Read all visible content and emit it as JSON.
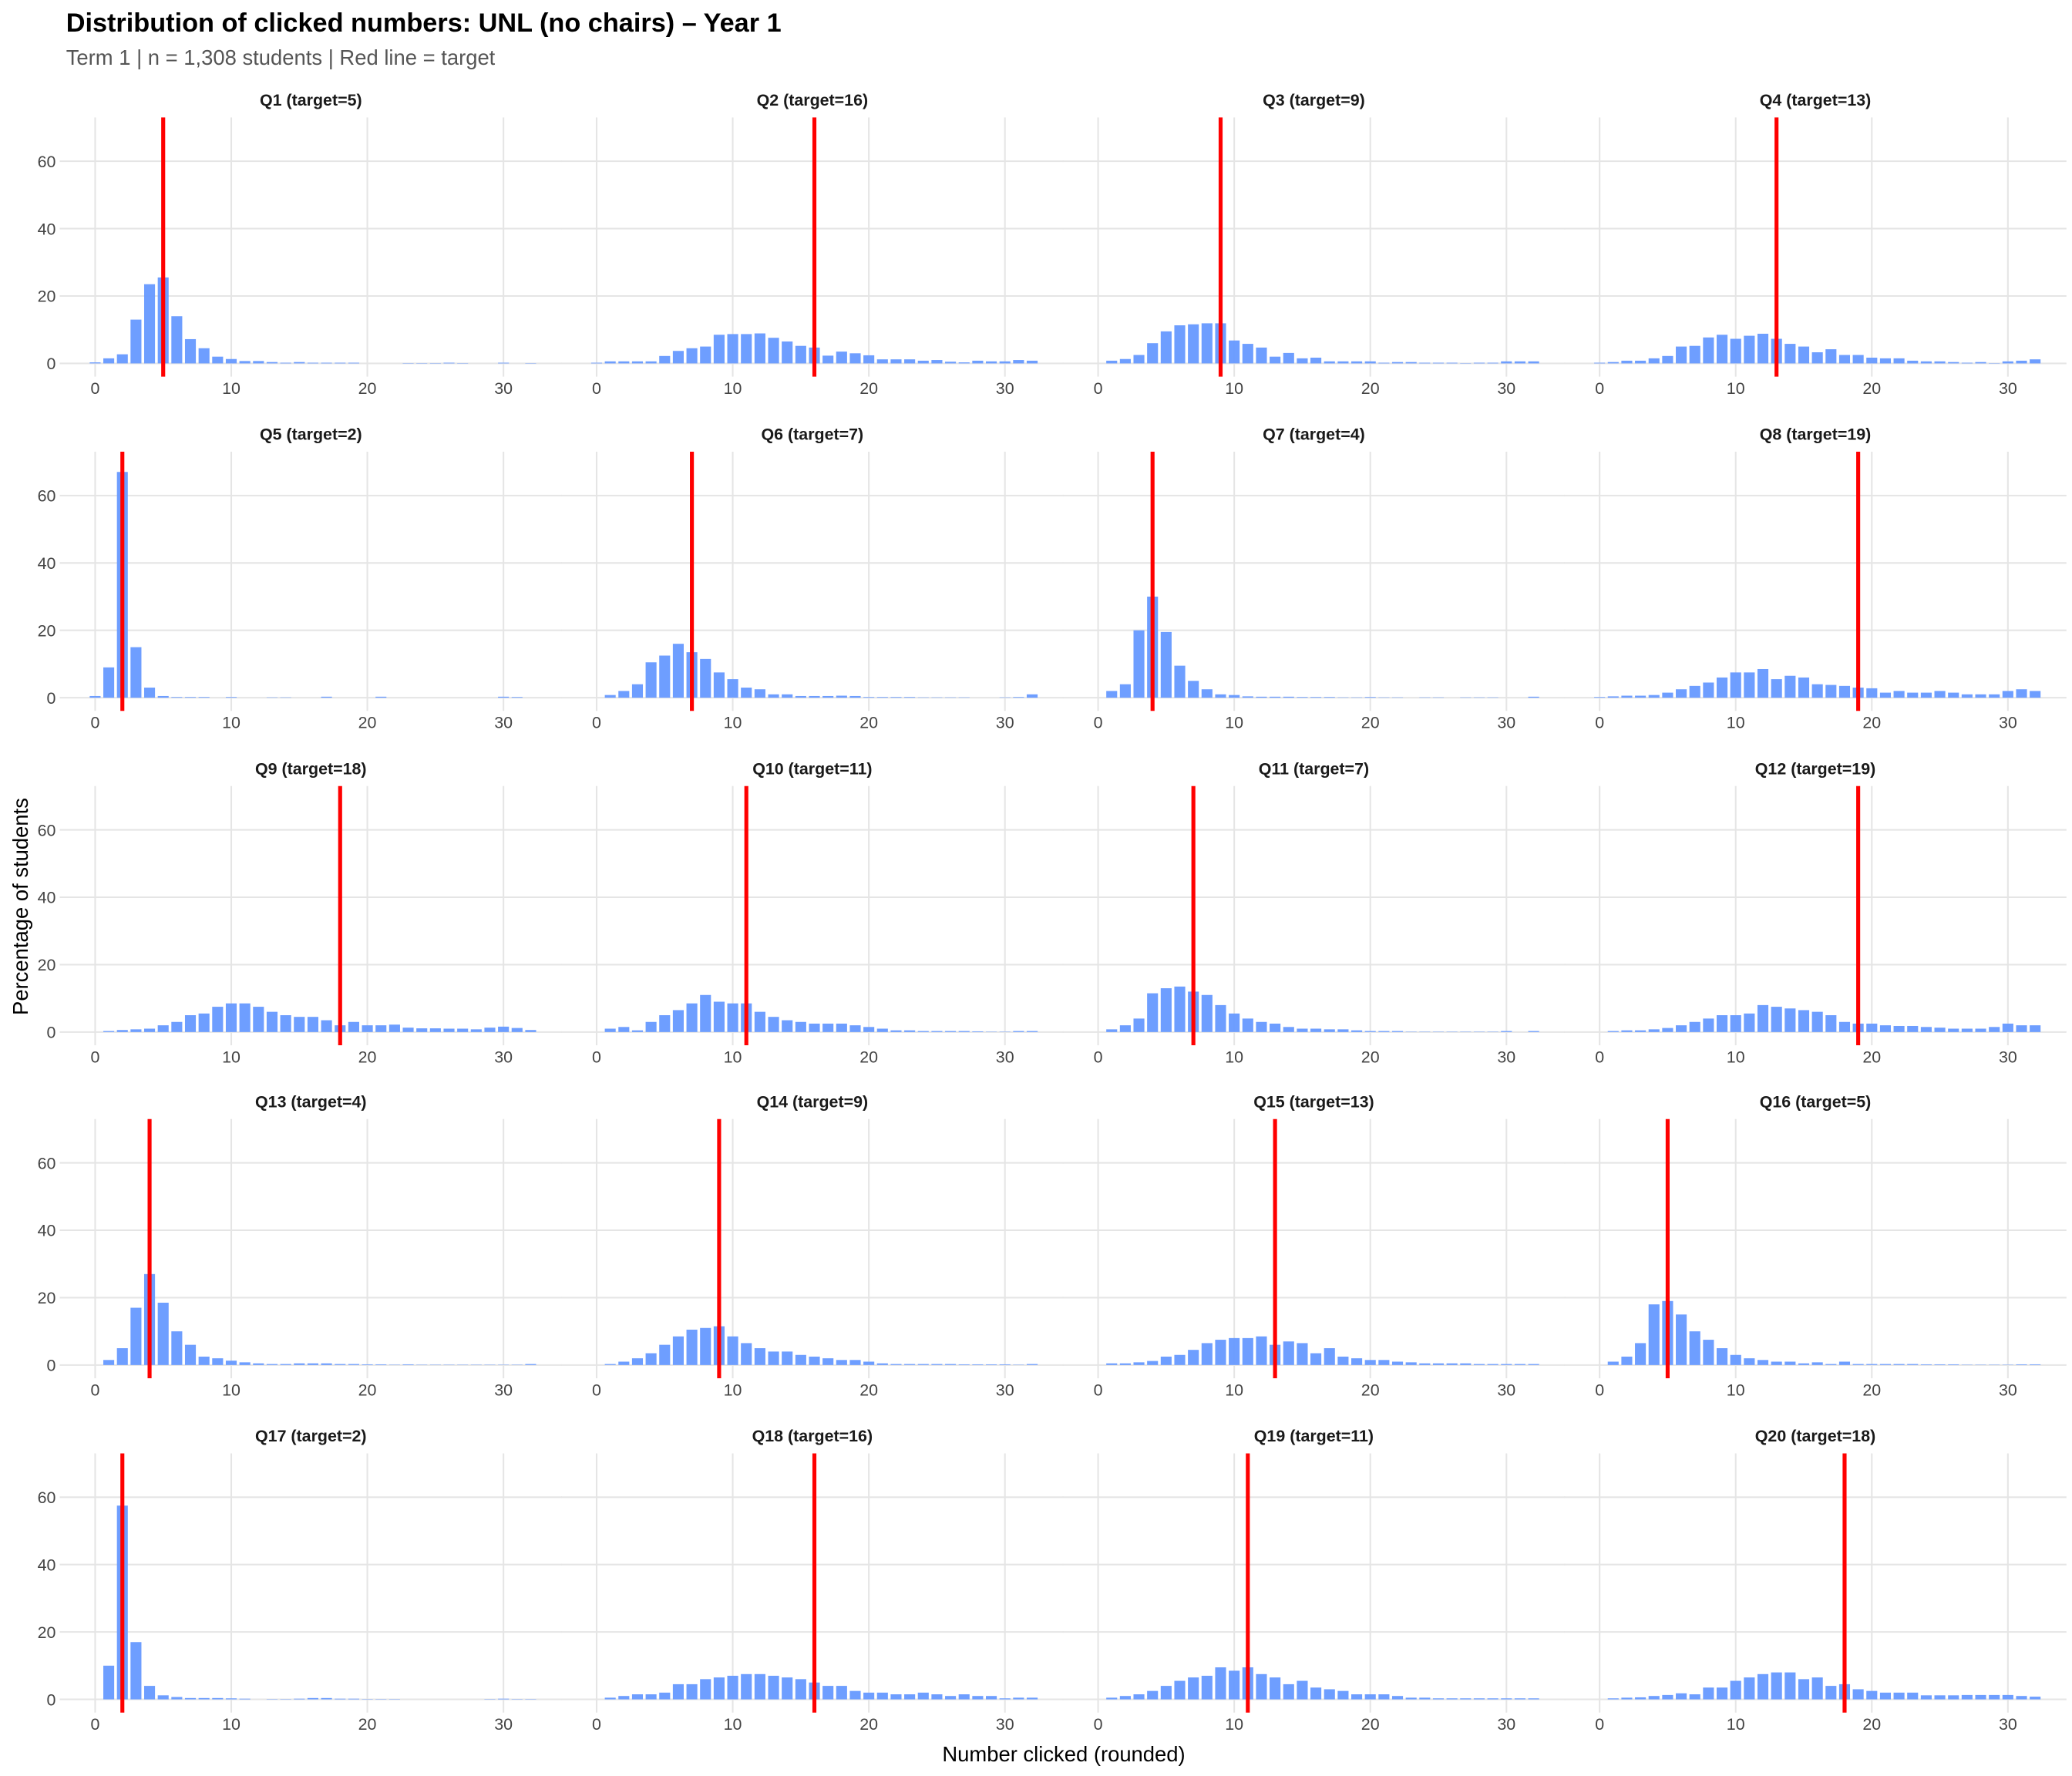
{
  "title": "Distribution of clicked numbers: UNL (no chairs) – Year 1",
  "subtitle": "Term 1 | n = 1,308 students | Red line = target",
  "colors": {
    "bar": "#6699FF",
    "target_line": "#FF0000",
    "grid": "#E5E5E5"
  },
  "chart_data": {
    "type": "bar",
    "facet_layout": "5 rows x 4 columns",
    "xlabel": "Number clicked (rounded)",
    "ylabel": "Percentage of students",
    "x": [
      0,
      1,
      2,
      3,
      4,
      5,
      6,
      7,
      8,
      9,
      10,
      11,
      12,
      13,
      14,
      15,
      16,
      17,
      18,
      19,
      20,
      21,
      22,
      23,
      24,
      25,
      26,
      27,
      28,
      29,
      30,
      31,
      32
    ],
    "xlim": [
      -2.6,
      34.3
    ],
    "ylim": [
      0,
      73
    ],
    "xticks": [
      0,
      10,
      20,
      30
    ],
    "yticks": [
      0,
      20,
      40,
      60
    ],
    "grid": true,
    "panels": [
      {
        "label": "Q1 (target=5)",
        "target": 5,
        "values": [
          0.3,
          1.5,
          2.7,
          13,
          23.5,
          25.5,
          14,
          7.2,
          4.5,
          2,
          1.3,
          0.7,
          0.7,
          0.4,
          0.2,
          0.4,
          0.2,
          0.2,
          0.2,
          0.2,
          0,
          0,
          0,
          0.1,
          0.1,
          0.1,
          0.2,
          0.1,
          0,
          0,
          0.2,
          0,
          0.1
        ]
      },
      {
        "label": "Q2 (target=16)",
        "target": 16,
        "values": [
          0.2,
          0.6,
          0.6,
          0.6,
          0.6,
          2.2,
          3.7,
          4.5,
          5,
          8.5,
          8.7,
          8.7,
          8.9,
          7.6,
          6.5,
          5.2,
          4.7,
          2.3,
          3.5,
          3,
          2.4,
          1.2,
          1.2,
          1.2,
          0.8,
          1,
          0.5,
          0.3,
          0.8,
          0.6,
          0.6,
          1,
          0.8
        ]
      },
      {
        "label": "Q3 (target=9)",
        "target": 9,
        "values": [
          0,
          0.8,
          1.3,
          2.5,
          6,
          9.5,
          11.3,
          11.6,
          11.9,
          11.9,
          6.8,
          5.8,
          4.7,
          2,
          3.1,
          1.5,
          1.7,
          0.6,
          0.6,
          0.6,
          0.6,
          0.2,
          0.4,
          0.4,
          0.2,
          0.2,
          0.2,
          0.1,
          0.2,
          0.2,
          0.6,
          0.6,
          0.6
        ]
      },
      {
        "label": "Q4 (target=13)",
        "target": 13,
        "values": [
          0.2,
          0.4,
          0.8,
          0.8,
          1.5,
          2.2,
          5,
          5.2,
          7.7,
          8.5,
          7.3,
          8.2,
          8.8,
          7.3,
          5.8,
          5,
          3.3,
          4.2,
          2.5,
          2.5,
          1.7,
          1.5,
          1.5,
          0.8,
          0.6,
          0.6,
          0.4,
          0.2,
          0.4,
          0.1,
          0.6,
          0.8,
          1.2
        ]
      },
      {
        "label": "Q5 (target=2)",
        "target": 2,
        "values": [
          0.5,
          9,
          67,
          15,
          3,
          0.5,
          0.2,
          0.2,
          0.2,
          0,
          0.2,
          0,
          0,
          0.1,
          0.1,
          0,
          0,
          0.3,
          0,
          0,
          0,
          0.3,
          0,
          0,
          0,
          0,
          0,
          0,
          0,
          0,
          0.3,
          0.2,
          0
        ]
      },
      {
        "label": "Q6 (target=7)",
        "target": 7,
        "values": [
          0,
          0.8,
          2,
          4,
          10.5,
          12.5,
          16,
          13.5,
          11.5,
          7.5,
          5.5,
          3,
          2.5,
          1,
          1,
          0.5,
          0.5,
          0.5,
          0.6,
          0.5,
          0.2,
          0.2,
          0.2,
          0.2,
          0.1,
          0.1,
          0.1,
          0.1,
          0,
          0,
          0.1,
          0.2,
          1
        ]
      },
      {
        "label": "Q7 (target=4)",
        "target": 4,
        "values": [
          0,
          2,
          4,
          20,
          30,
          19.5,
          9.5,
          5,
          2.5,
          1,
          0.8,
          0.4,
          0.3,
          0.3,
          0.3,
          0.2,
          0.2,
          0.2,
          0.1,
          0.1,
          0.2,
          0.1,
          0.1,
          0,
          0.1,
          0.1,
          0,
          0.1,
          0.1,
          0.1,
          0,
          0,
          0.3
        ]
      },
      {
        "label": "Q8 (target=19)",
        "target": 19,
        "values": [
          0.2,
          0.4,
          0.6,
          0.6,
          0.8,
          1.5,
          2.5,
          3.5,
          4.5,
          6,
          7.5,
          7.5,
          8.5,
          5.5,
          6.5,
          6,
          4,
          3.8,
          3.5,
          3,
          2.8,
          1.5,
          2,
          1.5,
          1.5,
          2,
          1.5,
          1,
          1,
          1,
          2,
          2.5,
          2
        ]
      },
      {
        "label": "Q9 (target=18)",
        "target": 18,
        "values": [
          0,
          0.3,
          0.6,
          0.8,
          1,
          2,
          3,
          5,
          5.5,
          7.5,
          8.5,
          8.5,
          7.5,
          6,
          5,
          4.5,
          4.5,
          3.5,
          2,
          3,
          2,
          2,
          2.2,
          1.3,
          1.1,
          1.1,
          1,
          1,
          0.8,
          1.3,
          1.6,
          1.2,
          0.6
        ]
      },
      {
        "label": "Q10 (target=11)",
        "target": 11,
        "values": [
          0,
          1,
          1.5,
          0.5,
          3,
          5,
          6.5,
          8.5,
          11,
          9,
          8.5,
          8.5,
          6,
          4.5,
          3.5,
          3,
          2.5,
          2.5,
          2.5,
          2,
          1.5,
          1,
          0.5,
          0.5,
          0.3,
          0.3,
          0.3,
          0.3,
          0.2,
          0.1,
          0.1,
          0.3,
          0.3
        ]
      },
      {
        "label": "Q11 (target=7)",
        "target": 7,
        "values": [
          0,
          0.8,
          2,
          4,
          11.5,
          13,
          13.5,
          12,
          11,
          8,
          5.5,
          4,
          3,
          2.5,
          1.5,
          1,
          1,
          0.8,
          0.8,
          0.5,
          0.3,
          0.3,
          0.3,
          0.1,
          0.1,
          0.1,
          0.1,
          0.1,
          0.1,
          0.1,
          0.3,
          0,
          0.3
        ]
      },
      {
        "label": "Q12 (target=19)",
        "target": 19,
        "values": [
          0,
          0.3,
          0.5,
          0.5,
          0.8,
          1.2,
          2,
          3,
          4,
          5,
          5,
          5.5,
          8,
          7.5,
          7,
          6.5,
          6,
          5,
          3,
          2.5,
          2.5,
          2,
          1.8,
          1.8,
          1.5,
          1.3,
          1,
          1,
          1,
          1.5,
          2.5,
          2,
          2
        ]
      },
      {
        "label": "Q13 (target=4)",
        "target": 4,
        "values": [
          0,
          1.5,
          5,
          17,
          27,
          18.5,
          10,
          6,
          2.5,
          2,
          1.3,
          0.8,
          0.5,
          0.3,
          0.3,
          0.5,
          0.5,
          0.5,
          0.3,
          0.3,
          0.2,
          0.2,
          0.1,
          0.2,
          0.1,
          0.1,
          0.1,
          0.1,
          0.1,
          0.1,
          0.1,
          0.1,
          0.3
        ]
      },
      {
        "label": "Q14 (target=9)",
        "target": 9,
        "values": [
          0,
          0.3,
          1,
          2,
          3.5,
          6,
          8.5,
          10.5,
          11,
          11.5,
          8.5,
          6.5,
          5,
          4,
          4,
          3,
          2.5,
          2,
          1.5,
          1.5,
          1,
          0.5,
          0.3,
          0.3,
          0.3,
          0.3,
          0.3,
          0.2,
          0.2,
          0.2,
          0.2,
          0.1,
          0.3
        ]
      },
      {
        "label": "Q15 (target=13)",
        "target": 13,
        "values": [
          0,
          0.5,
          0.5,
          0.8,
          1.2,
          2.5,
          3,
          4.5,
          6.5,
          7.5,
          8,
          8,
          8.5,
          6,
          7,
          6.5,
          3.5,
          5,
          2.5,
          2,
          1.5,
          1.5,
          1,
          0.8,
          0.5,
          0.5,
          0.5,
          0.5,
          0.3,
          0.3,
          0.3,
          0.3,
          0.3
        ]
      },
      {
        "label": "Q16 (target=5)",
        "target": 5,
        "values": [
          0,
          1,
          2.5,
          6.5,
          18,
          19,
          15,
          10,
          7.5,
          5,
          3,
          2,
          1.5,
          1,
          1,
          0.5,
          0.8,
          0.3,
          1,
          0.3,
          0.3,
          0.3,
          0.3,
          0.3,
          0.2,
          0.2,
          0.2,
          0.1,
          0.1,
          0.1,
          0.1,
          0.2,
          0.2
        ]
      },
      {
        "label": "Q17 (target=2)",
        "target": 2,
        "values": [
          0,
          10,
          57.5,
          17,
          4,
          1.2,
          0.7,
          0.4,
          0.4,
          0.4,
          0.3,
          0.2,
          0,
          0.1,
          0.1,
          0.2,
          0.4,
          0.4,
          0.2,
          0.2,
          0.1,
          0.1,
          0.1,
          0,
          0,
          0,
          0,
          0,
          0,
          0.1,
          0.2,
          0.1,
          0.1
        ]
      },
      {
        "label": "Q18 (target=16)",
        "target": 16,
        "values": [
          0,
          0.5,
          1,
          1.5,
          1.5,
          2,
          4.5,
          4.5,
          6,
          6.5,
          7,
          7.5,
          7.5,
          7,
          6.5,
          6,
          5,
          4,
          4,
          2.5,
          2,
          2,
          1.5,
          1.5,
          2,
          1.5,
          1,
          1.5,
          1,
          1,
          0.3,
          0.5,
          0.5
        ]
      },
      {
        "label": "Q19 (target=11)",
        "target": 11,
        "values": [
          0,
          0.5,
          1,
          1.5,
          2.5,
          4,
          5.5,
          6.5,
          7,
          9.5,
          8.5,
          9.5,
          7.5,
          6.5,
          4.5,
          5.5,
          3.5,
          3,
          2.5,
          1.5,
          1.5,
          1.5,
          1,
          0.5,
          0.5,
          0.3,
          0.3,
          0.3,
          0.3,
          0.3,
          0.3,
          0.3,
          0.3
        ]
      },
      {
        "label": "Q20 (target=18)",
        "target": 18,
        "values": [
          0,
          0.3,
          0.5,
          0.6,
          1,
          1.3,
          1.8,
          1.5,
          3.5,
          3.5,
          5.5,
          6.5,
          7.5,
          8,
          8,
          6,
          6.5,
          4,
          4.5,
          3,
          2.5,
          2,
          2,
          2,
          1.2,
          1.2,
          1.2,
          1.3,
          1.3,
          1.3,
          1.3,
          1,
          0.8
        ]
      }
    ]
  }
}
